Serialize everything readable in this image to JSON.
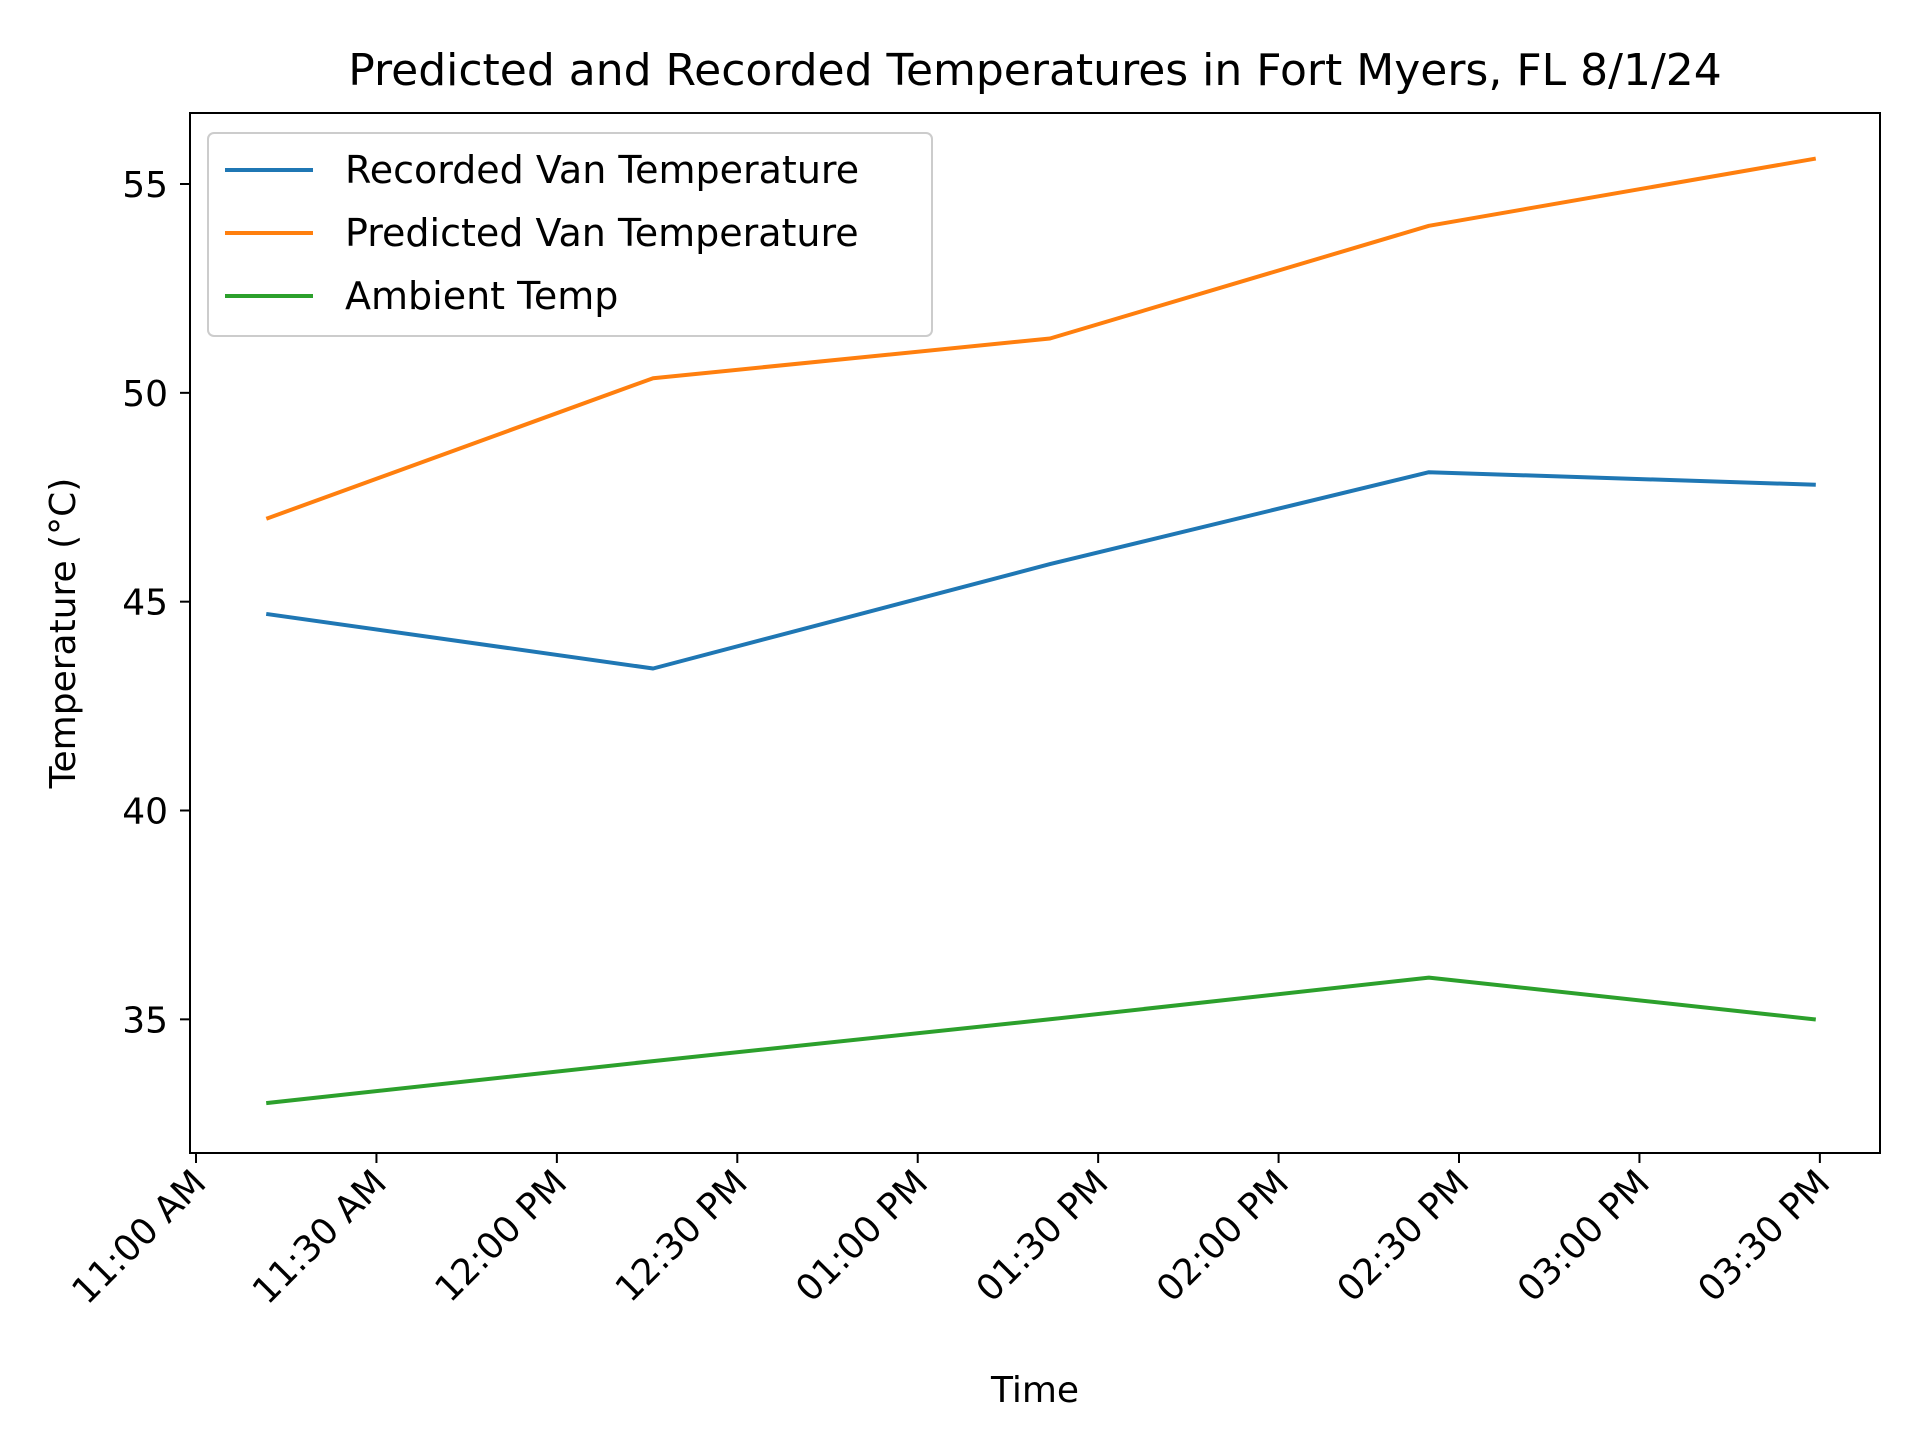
{
  "chart_data": {
    "type": "line",
    "title": "Predicted and Recorded Temperatures in Fort Myers, FL 8/1/24",
    "xlabel": "Time",
    "ylabel": "Temperature (°C)",
    "x_ticks": [
      "11:00 AM",
      "11:30 AM",
      "12:00 PM",
      "12:30 PM",
      "01:00 PM",
      "01:30 PM",
      "02:00 PM",
      "02:30 PM",
      "03:00 PM",
      "03:30 PM"
    ],
    "x_tick_minutes": [
      660,
      690,
      720,
      750,
      780,
      810,
      840,
      870,
      900,
      930
    ],
    "xlim_minutes": [
      659,
      940
    ],
    "ylim": [
      31.8,
      56.7
    ],
    "y_ticks": [
      35,
      40,
      45,
      50,
      55
    ],
    "x": [
      "11:12 AM",
      "12:16 PM",
      "01:22 PM",
      "02:25 PM",
      "03:29 PM"
    ],
    "x_minutes": [
      672,
      736,
      802,
      865,
      929
    ],
    "series": [
      {
        "name": "Recorded Van Temperature",
        "color": "#1f77b4",
        "values": [
          44.7,
          43.4,
          45.9,
          48.1,
          47.8
        ]
      },
      {
        "name": "Predicted Van Temperature",
        "color": "#ff7f0e",
        "values": [
          47.0,
          50.35,
          51.3,
          54.0,
          55.6
        ]
      },
      {
        "name": "Ambient Temp",
        "color": "#2ca02c",
        "values": [
          33.0,
          34.0,
          35.0,
          36.0,
          35.0
        ]
      }
    ],
    "legend_position": "top-left",
    "grid": false
  }
}
